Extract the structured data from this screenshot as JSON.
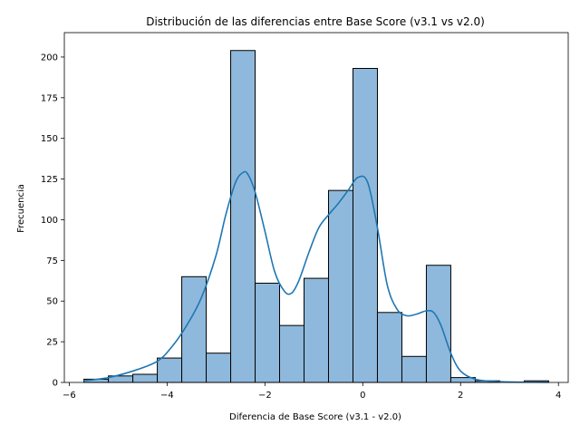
{
  "chart_data": {
    "type": "bar",
    "title": "Distribución de las diferencias entre Base Score (v3.1 vs v2.0)",
    "xlabel": "Diferencia de Base Score (v3.1 - v2.0)",
    "ylabel": "Frecuencia",
    "xlim": [
      -6.1,
      4.2
    ],
    "ylim": [
      0,
      215
    ],
    "xticks": [
      -6,
      -4,
      -2,
      0,
      2,
      4
    ],
    "yticks": [
      0,
      25,
      50,
      75,
      100,
      125,
      150,
      175,
      200
    ],
    "grid": false,
    "bar_color": "#8fb9dc",
    "bar_edge_color": "#000000",
    "kde_color": "#1f77b4",
    "bins": [
      {
        "x0": -5.7,
        "x1": -5.2,
        "count": 2
      },
      {
        "x0": -5.2,
        "x1": -4.7,
        "count": 4
      },
      {
        "x0": -4.7,
        "x1": -4.2,
        "count": 5
      },
      {
        "x0": -4.2,
        "x1": -3.7,
        "count": 15
      },
      {
        "x0": -3.7,
        "x1": -3.2,
        "count": 65
      },
      {
        "x0": -3.2,
        "x1": -2.7,
        "count": 18
      },
      {
        "x0": -2.7,
        "x1": -2.2,
        "count": 204
      },
      {
        "x0": -2.2,
        "x1": -1.7,
        "count": 61
      },
      {
        "x0": -1.7,
        "x1": -1.2,
        "count": 35
      },
      {
        "x0": -1.2,
        "x1": -0.7,
        "count": 64
      },
      {
        "x0": -0.7,
        "x1": -0.2,
        "count": 118
      },
      {
        "x0": -0.2,
        "x1": 0.3,
        "count": 193
      },
      {
        "x0": 0.3,
        "x1": 0.8,
        "count": 43
      },
      {
        "x0": 0.8,
        "x1": 1.3,
        "count": 16
      },
      {
        "x0": 1.3,
        "x1": 1.8,
        "count": 72
      },
      {
        "x0": 1.8,
        "x1": 2.3,
        "count": 3
      },
      {
        "x0": 2.3,
        "x1": 2.8,
        "count": 1
      },
      {
        "x0": 2.8,
        "x1": 3.3,
        "count": 0
      },
      {
        "x0": 3.3,
        "x1": 3.8,
        "count": 1
      }
    ],
    "kde": {
      "x": [
        -5.7,
        -5.2,
        -4.7,
        -4.2,
        -3.9,
        -3.6,
        -3.3,
        -3.0,
        -2.8,
        -2.6,
        -2.45,
        -2.35,
        -2.2,
        -2.0,
        -1.8,
        -1.6,
        -1.45,
        -1.3,
        -1.1,
        -0.9,
        -0.7,
        -0.5,
        -0.3,
        -0.1,
        0.1,
        0.3,
        0.5,
        0.7,
        0.9,
        1.1,
        1.3,
        1.45,
        1.6,
        1.8,
        2.0,
        2.3,
        2.7,
        3.2,
        3.8
      ],
      "y": [
        1,
        3,
        7,
        13,
        22,
        35,
        52,
        78,
        103,
        123,
        129,
        128,
        117,
        93,
        68,
        56,
        55,
        63,
        80,
        95,
        103,
        110,
        118,
        126,
        123,
        95,
        60,
        45,
        41,
        42,
        44,
        43,
        35,
        18,
        7,
        2,
        0.6,
        0.2,
        0.1
      ]
    }
  }
}
